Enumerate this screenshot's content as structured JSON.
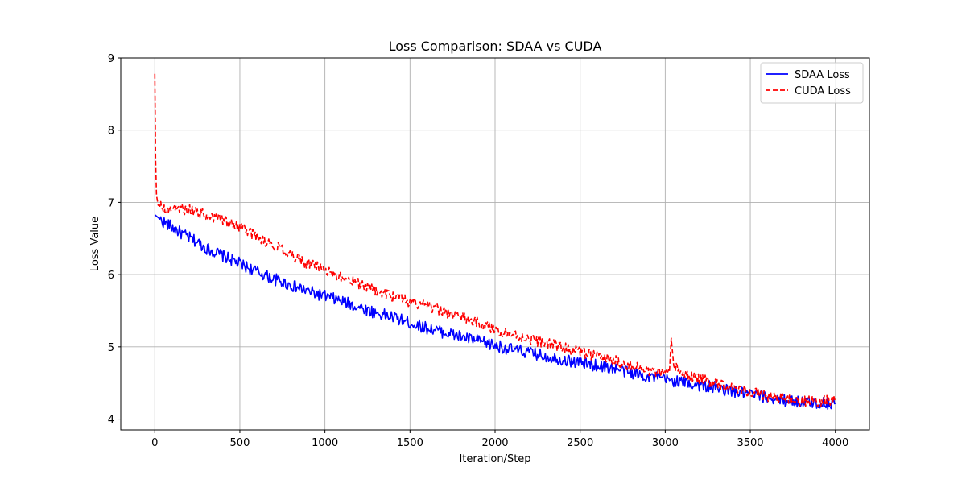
{
  "chart_data": {
    "type": "line",
    "title": "Loss Comparison: SDAA vs CUDA",
    "xlabel": "Iteration/Step",
    "ylabel": "Loss Value",
    "xlim": [
      -200,
      4200
    ],
    "ylim": [
      3.85,
      9.0
    ],
    "xticks": [
      0,
      500,
      1000,
      1500,
      2000,
      2500,
      3000,
      3500,
      4000
    ],
    "yticks": [
      4,
      5,
      6,
      7,
      8,
      9
    ],
    "grid": true,
    "legend_position": "top-right",
    "series": [
      {
        "name": "SDAA Loss",
        "color": "#0000ff",
        "style": "solid",
        "x": [
          0,
          50,
          100,
          150,
          200,
          250,
          300,
          400,
          500,
          600,
          700,
          800,
          900,
          1000,
          1100,
          1200,
          1300,
          1400,
          1500,
          1600,
          1700,
          1800,
          1900,
          2000,
          2100,
          2200,
          2300,
          2400,
          2500,
          2600,
          2700,
          2800,
          2900,
          3000,
          3100,
          3200,
          3300,
          3400,
          3500,
          3600,
          3700,
          3800,
          3900,
          4000
        ],
        "values": [
          6.83,
          6.73,
          6.66,
          6.58,
          6.51,
          6.45,
          6.37,
          6.26,
          6.15,
          6.04,
          5.94,
          5.85,
          5.77,
          5.7,
          5.63,
          5.55,
          5.47,
          5.41,
          5.33,
          5.26,
          5.2,
          5.14,
          5.08,
          5.02,
          4.96,
          4.92,
          4.87,
          4.82,
          4.78,
          4.74,
          4.7,
          4.64,
          4.59,
          4.55,
          4.51,
          4.47,
          4.43,
          4.38,
          4.34,
          4.3,
          4.26,
          4.24,
          4.22,
          4.22
        ]
      },
      {
        "name": "CUDA Loss",
        "color": "#ff0000",
        "style": "dashed",
        "x": [
          0,
          5,
          10,
          20,
          50,
          100,
          150,
          200,
          250,
          300,
          400,
          500,
          600,
          700,
          800,
          900,
          1000,
          1100,
          1200,
          1300,
          1400,
          1500,
          1600,
          1700,
          1800,
          1900,
          2000,
          2100,
          2200,
          2300,
          2400,
          2500,
          2600,
          2700,
          2800,
          2900,
          3000,
          3025,
          3035,
          3050,
          3100,
          3200,
          3300,
          3400,
          3500,
          3600,
          3700,
          3800,
          3900,
          4000
        ],
        "values": [
          8.78,
          7.6,
          7.1,
          6.96,
          6.92,
          6.91,
          6.91,
          6.9,
          6.87,
          6.83,
          6.76,
          6.66,
          6.52,
          6.4,
          6.27,
          6.15,
          6.07,
          5.97,
          5.87,
          5.78,
          5.7,
          5.62,
          5.56,
          5.49,
          5.41,
          5.33,
          5.24,
          5.17,
          5.11,
          5.05,
          4.99,
          4.93,
          4.87,
          4.81,
          4.73,
          4.67,
          4.61,
          4.65,
          5.12,
          4.75,
          4.63,
          4.55,
          4.5,
          4.44,
          4.38,
          4.32,
          4.28,
          4.25,
          4.24,
          4.27
        ]
      }
    ]
  }
}
